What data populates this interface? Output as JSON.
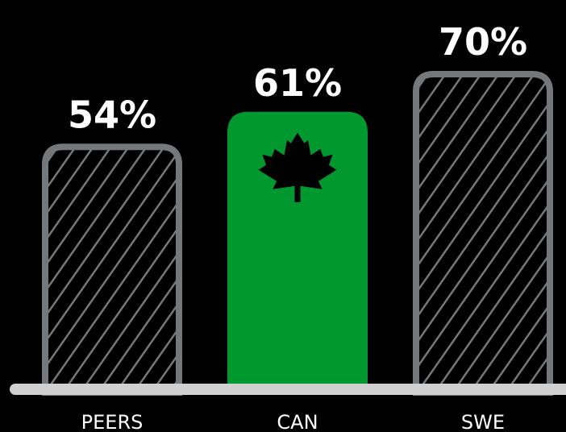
{
  "chart_data": {
    "type": "bar",
    "categories": [
      "PEERS",
      "CAN",
      "SWE"
    ],
    "values": [
      54,
      61,
      70
    ],
    "value_labels": [
      "54%",
      "61%",
      "70%"
    ],
    "title": "",
    "xlabel": "",
    "ylabel": "",
    "highlight_category": "CAN",
    "highlight_icon": "maple-leaf-icon",
    "grid": false,
    "legend": "none"
  },
  "colors": {
    "background": "#000000",
    "highlight_fill": "#00982f",
    "outline": "#75787b",
    "hatch": "#75787b",
    "baseline": "#d0d0d0",
    "icon": "#000000",
    "text": "#ffffff"
  }
}
